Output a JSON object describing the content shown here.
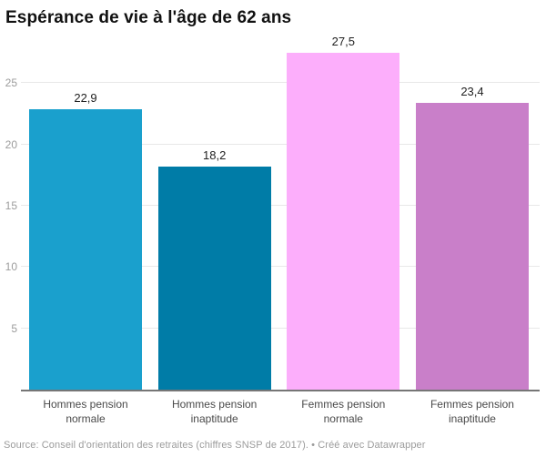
{
  "header": {
    "title": "Espérance de vie à l'âge de 62 ans"
  },
  "footer": {
    "text": "Source: Conseil d'orientation des retraites (chiffres SNSP de 2017). • Créé avec Datawrapper"
  },
  "colors": {
    "background": "#ffffff",
    "grid": "#e8e8e8",
    "baseline": "#767676",
    "axis_text": "#9c9c9c",
    "value_text": "#222222",
    "category_text": "#4a4a4a",
    "footer_text": "#9b9b9b"
  },
  "chart_data": {
    "type": "bar",
    "title": "Espérance de vie à l'âge de 62 ans",
    "categories": [
      "Hommes pension normale",
      "Hommes pension inaptitude",
      "Femmes pension normale",
      "Femmes pension inaptitude"
    ],
    "values": [
      22.9,
      18.2,
      27.5,
      23.4
    ],
    "value_labels": [
      "22,9",
      "18,2",
      "27,5",
      "23,4"
    ],
    "bar_colors": [
      "#1AA0CD",
      "#007CA7",
      "#FCAEFB",
      "#C97FC9"
    ],
    "xlabel": "",
    "ylabel": "",
    "ylim": [
      0,
      27.5
    ],
    "yticks": [
      5,
      10,
      15,
      20,
      25
    ],
    "grid": true,
    "legend": false,
    "source": "Source: Conseil d'orientation des retraites (chiffres SNSP de 2017). • Créé avec Datawrapper"
  }
}
